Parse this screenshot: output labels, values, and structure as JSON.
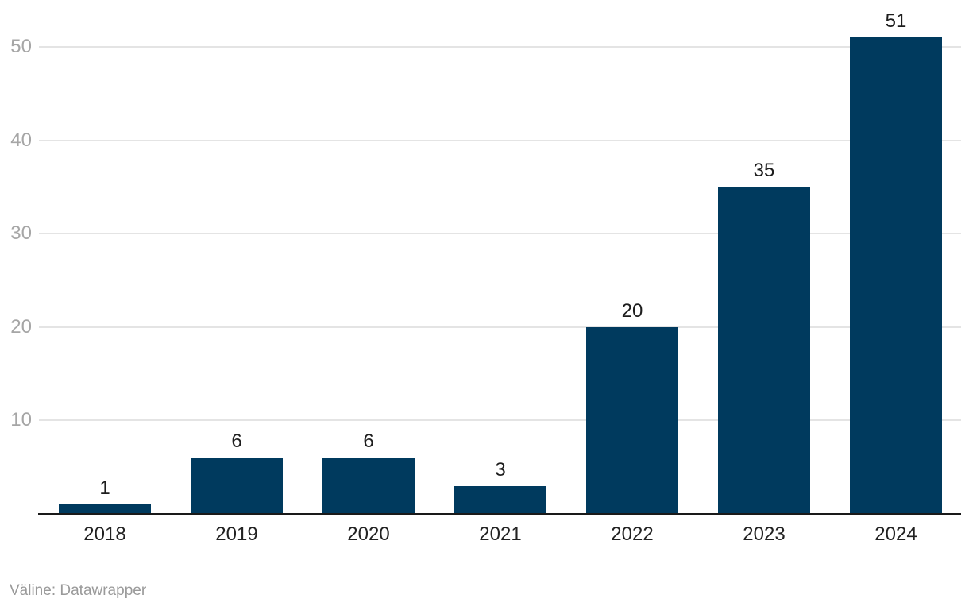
{
  "chart_data": {
    "type": "bar",
    "categories": [
      "2018",
      "2019",
      "2020",
      "2021",
      "2022",
      "2023",
      "2024"
    ],
    "values": [
      1,
      6,
      6,
      3,
      20,
      35,
      51
    ],
    "title": "",
    "xlabel": "",
    "ylabel": "",
    "ylim": [
      0,
      52
    ],
    "yticks": [
      10,
      20,
      30,
      40,
      50
    ],
    "grid": true,
    "legend": "none",
    "bar_color": "#003a5e"
  },
  "footer": {
    "source_label": "Väline: Datawrapper"
  },
  "colors": {
    "bar": "#003a5e",
    "gridline": "#e4e4e4",
    "axis_line": "#1a1a1a",
    "y_tick_text": "#a6a6a6",
    "x_tick_text": "#222222",
    "value_label_text": "#1d1d1d",
    "source_text": "#9a9a9a",
    "background": "#ffffff"
  }
}
